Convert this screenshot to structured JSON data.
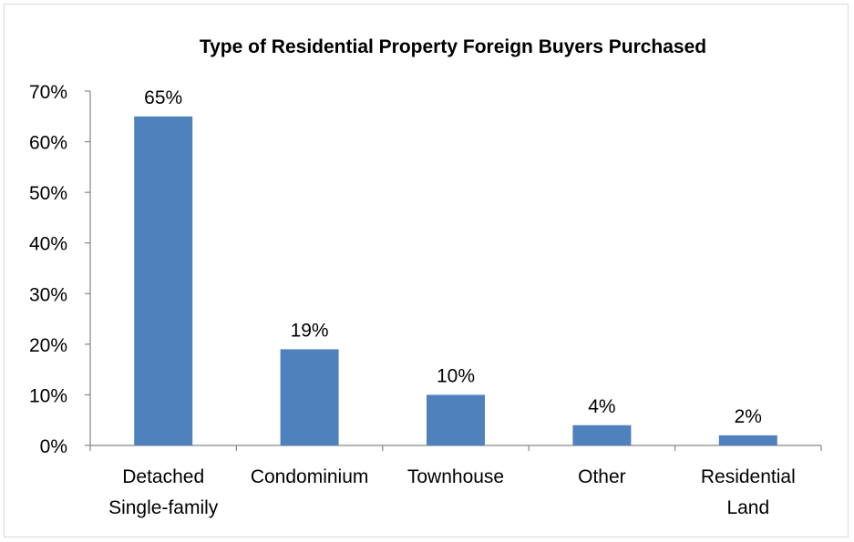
{
  "chart_data": {
    "type": "bar",
    "title": "Type of Residential Property Foreign Buyers Purchased",
    "xlabel": "",
    "ylabel": "",
    "categories": [
      [
        "Detached",
        "Single-family"
      ],
      [
        "Condominium"
      ],
      [
        "Townhouse"
      ],
      [
        "Other"
      ],
      [
        "Residential",
        "Land"
      ]
    ],
    "values": [
      65,
      19,
      10,
      4,
      2
    ],
    "data_labels": [
      "65%",
      "19%",
      "10%",
      "4%",
      "2%"
    ],
    "ylim": [
      0,
      70
    ],
    "y_ticks": [
      0,
      10,
      20,
      30,
      40,
      50,
      60,
      70
    ],
    "y_tick_labels": [
      "0%",
      "10%",
      "20%",
      "30%",
      "40%",
      "50%",
      "60%",
      "70%"
    ],
    "grid": false,
    "legend": "none",
    "bar_color": "#4f81bd"
  }
}
